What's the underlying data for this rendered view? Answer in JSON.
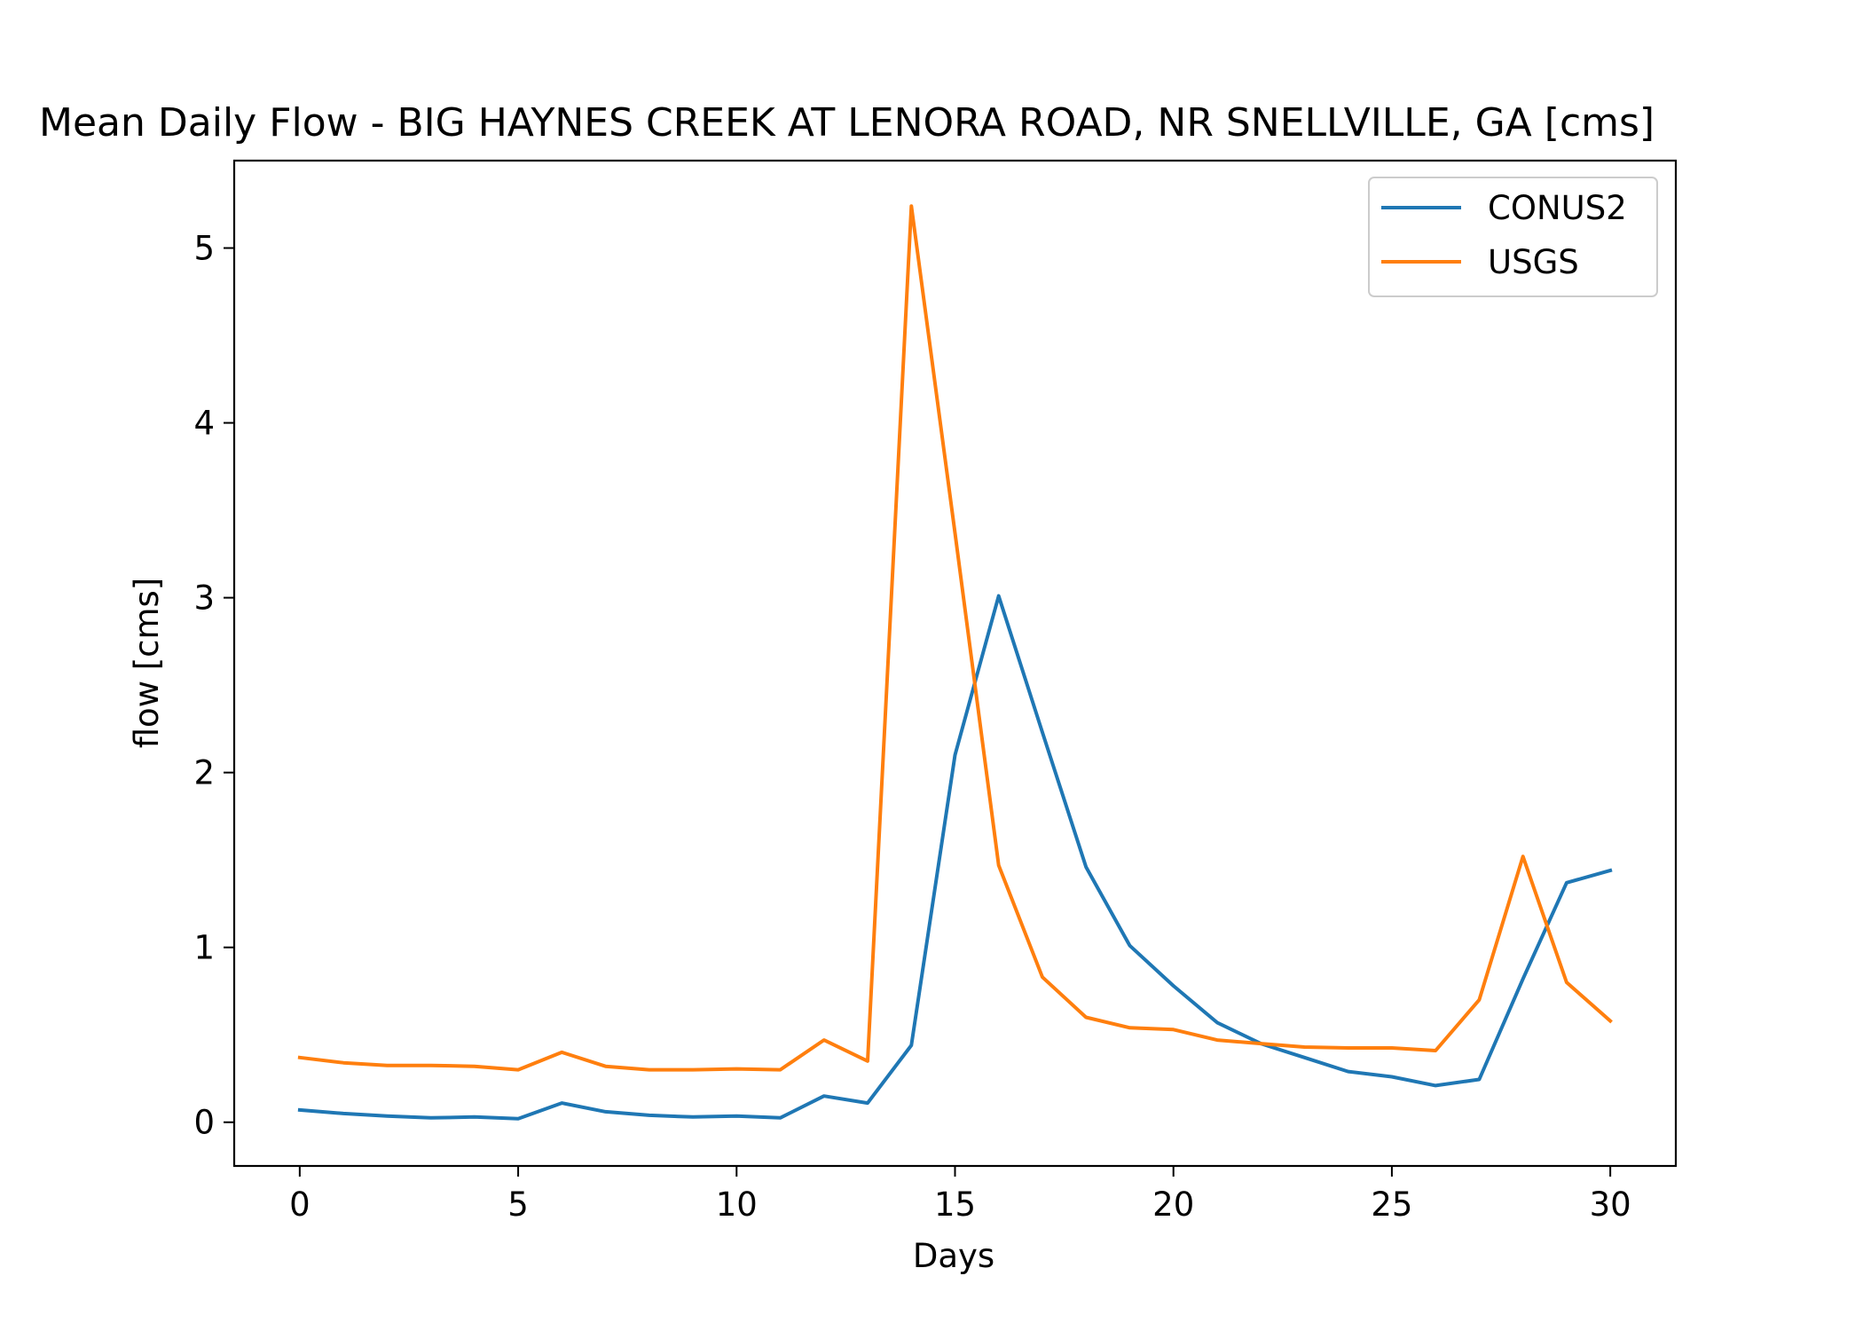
{
  "chart_data": {
    "type": "line",
    "title": "Mean Daily Flow - BIG HAYNES CREEK AT LENORA ROAD, NR SNELLVILLE, GA [cms]",
    "xlabel": "Days",
    "ylabel": "flow [cms]",
    "xlim": [
      -1.5,
      31.5
    ],
    "ylim": [
      -0.25,
      5.5
    ],
    "xticks": [
      0,
      5,
      10,
      15,
      20,
      25,
      30
    ],
    "yticks": [
      0,
      1,
      2,
      3,
      4,
      5
    ],
    "grid": false,
    "legend_position": "top-right",
    "x": [
      0,
      1,
      2,
      3,
      4,
      5,
      6,
      7,
      8,
      9,
      10,
      11,
      12,
      13,
      14,
      15,
      16,
      17,
      18,
      19,
      20,
      21,
      22,
      23,
      24,
      25,
      26,
      27,
      28,
      29,
      30
    ],
    "series": [
      {
        "name": "CONUS2",
        "color": "#1f77b4",
        "values": [
          0.07,
          0.05,
          0.035,
          0.025,
          0.03,
          0.02,
          0.11,
          0.06,
          0.04,
          0.03,
          0.035,
          0.025,
          0.15,
          0.11,
          0.44,
          2.1,
          3.01,
          2.23,
          1.46,
          1.01,
          0.78,
          0.57,
          0.45,
          0.37,
          0.29,
          0.26,
          0.21,
          0.245,
          0.82,
          1.37,
          1.44
        ]
      },
      {
        "name": "USGS",
        "color": "#ff7f0e",
        "values": [
          0.37,
          0.34,
          0.325,
          0.325,
          0.32,
          0.3,
          0.4,
          0.32,
          0.3,
          0.3,
          0.305,
          0.3,
          0.47,
          0.35,
          5.24,
          3.37,
          1.47,
          0.83,
          0.6,
          0.54,
          0.53,
          0.47,
          0.45,
          0.43,
          0.425,
          0.425,
          0.41,
          0.7,
          1.52,
          0.8,
          0.58
        ]
      }
    ]
  }
}
